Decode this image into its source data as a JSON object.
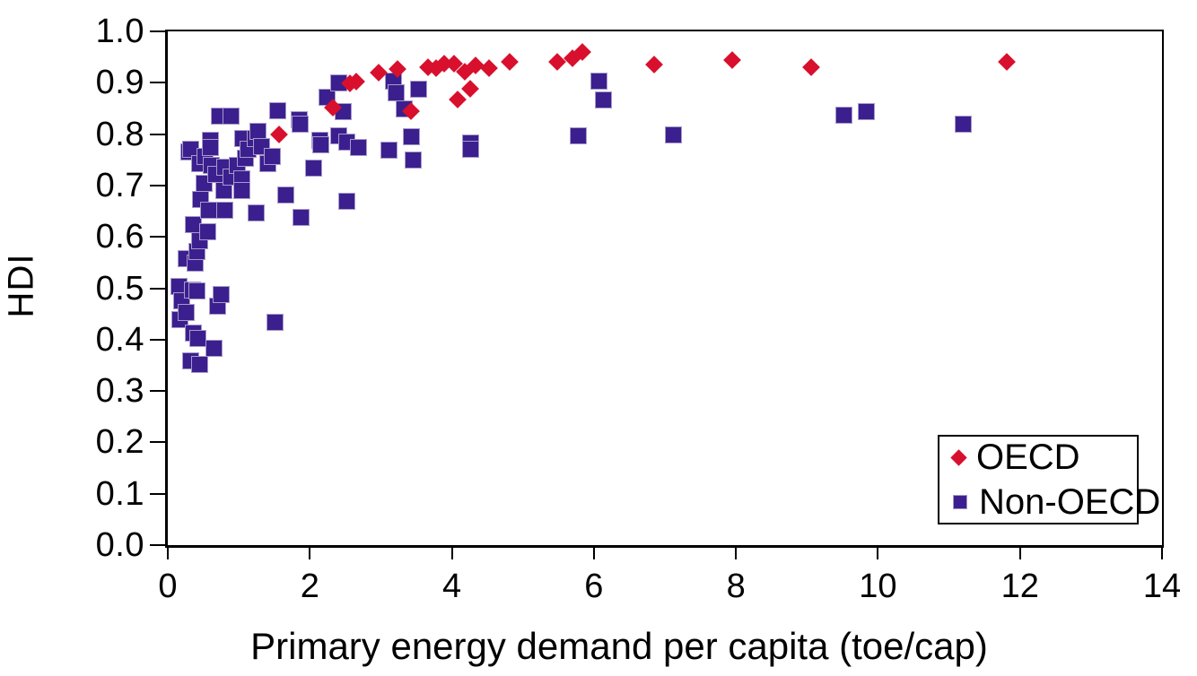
{
  "chart_data": {
    "type": "scatter",
    "title": "",
    "xlabel": "Primary energy demand per capita (toe/cap)",
    "ylabel": "HDI",
    "xlim": [
      0,
      14
    ],
    "ylim": [
      0.0,
      1.0
    ],
    "x_ticks": [
      "0",
      "2",
      "4",
      "6",
      "8",
      "10",
      "12",
      "14"
    ],
    "y_ticks": [
      "0.0",
      "0.1",
      "0.2",
      "0.3",
      "0.4",
      "0.5",
      "0.6",
      "0.7",
      "0.8",
      "0.9",
      "1.0"
    ],
    "grid": false,
    "legend_position": "bottom-right",
    "series": [
      {
        "name": "OECD",
        "marker": "diamond",
        "color": "#d8102d",
        "points": [
          [
            1.57,
            0.799
          ],
          [
            2.32,
            0.851
          ],
          [
            2.57,
            0.898
          ],
          [
            2.65,
            0.903
          ],
          [
            2.97,
            0.92
          ],
          [
            3.24,
            0.927
          ],
          [
            3.43,
            0.844
          ],
          [
            3.66,
            0.931
          ],
          [
            3.78,
            0.928
          ],
          [
            3.89,
            0.937
          ],
          [
            4.03,
            0.937
          ],
          [
            4.08,
            0.868
          ],
          [
            4.18,
            0.922
          ],
          [
            4.26,
            0.889
          ],
          [
            4.33,
            0.933
          ],
          [
            4.52,
            0.928
          ],
          [
            4.82,
            0.94
          ],
          [
            5.49,
            0.94
          ],
          [
            5.7,
            0.947
          ],
          [
            5.84,
            0.96
          ],
          [
            6.85,
            0.936
          ],
          [
            7.95,
            0.945
          ],
          [
            9.06,
            0.93
          ],
          [
            11.82,
            0.941
          ]
        ]
      },
      {
        "name": "Non-OECD",
        "marker": "square",
        "color": "#3b1f8e",
        "points": [
          [
            0.15,
            0.505
          ],
          [
            0.17,
            0.44
          ],
          [
            0.19,
            0.477
          ],
          [
            0.25,
            0.558
          ],
          [
            0.25,
            0.454
          ],
          [
            0.29,
            0.766
          ],
          [
            0.31,
            0.772
          ],
          [
            0.31,
            0.359
          ],
          [
            0.34,
            0.498
          ],
          [
            0.36,
            0.625
          ],
          [
            0.36,
            0.414
          ],
          [
            0.38,
            0.55
          ],
          [
            0.4,
            0.573
          ],
          [
            0.4,
            0.495
          ],
          [
            0.42,
            0.403
          ],
          [
            0.44,
            0.743
          ],
          [
            0.44,
            0.593
          ],
          [
            0.44,
            0.353
          ],
          [
            0.46,
            0.673
          ],
          [
            0.5,
            0.705
          ],
          [
            0.52,
            0.757
          ],
          [
            0.55,
            0.61
          ],
          [
            0.57,
            0.653
          ],
          [
            0.59,
            0.789
          ],
          [
            0.59,
            0.775
          ],
          [
            0.61,
            0.74
          ],
          [
            0.65,
            0.384
          ],
          [
            0.67,
            0.723
          ],
          [
            0.7,
            0.466
          ],
          [
            0.72,
            0.836
          ],
          [
            0.75,
            0.489
          ],
          [
            0.78,
            0.691
          ],
          [
            0.8,
            0.737
          ],
          [
            0.8,
            0.653
          ],
          [
            0.88,
            0.718
          ],
          [
            0.89,
            0.836
          ],
          [
            0.97,
            0.74
          ],
          [
            1.03,
            0.714
          ],
          [
            1.03,
            0.691
          ],
          [
            1.05,
            0.792
          ],
          [
            1.09,
            0.754
          ],
          [
            1.13,
            0.772
          ],
          [
            1.22,
            0.793
          ],
          [
            1.24,
            0.648
          ],
          [
            1.26,
            0.806
          ],
          [
            1.32,
            0.777
          ],
          [
            1.4,
            0.743
          ],
          [
            1.47,
            0.757
          ],
          [
            1.5,
            0.434
          ],
          [
            1.54,
            0.847
          ],
          [
            1.66,
            0.682
          ],
          [
            1.84,
            0.829
          ],
          [
            1.86,
            0.82
          ],
          [
            1.87,
            0.639
          ],
          [
            2.05,
            0.734
          ],
          [
            2.13,
            0.789
          ],
          [
            2.15,
            0.78
          ],
          [
            2.24,
            0.873
          ],
          [
            2.4,
            0.901
          ],
          [
            2.4,
            0.797
          ],
          [
            2.47,
            0.845
          ],
          [
            2.51,
            0.785
          ],
          [
            2.52,
            0.671
          ],
          [
            2.68,
            0.774
          ],
          [
            3.11,
            0.769
          ],
          [
            3.17,
            0.904
          ],
          [
            3.21,
            0.881
          ],
          [
            3.32,
            0.85
          ],
          [
            3.42,
            0.795
          ],
          [
            3.45,
            0.75
          ],
          [
            3.52,
            0.889
          ],
          [
            4.26,
            0.783
          ],
          [
            4.26,
            0.771
          ],
          [
            5.78,
            0.797
          ],
          [
            6.07,
            0.904
          ],
          [
            6.13,
            0.868
          ],
          [
            7.12,
            0.8
          ],
          [
            9.52,
            0.837
          ],
          [
            9.83,
            0.844
          ],
          [
            11.19,
            0.82
          ]
        ]
      }
    ]
  },
  "colors": {
    "oecd": "#d8102d",
    "non_oecd": "#3b1f8e",
    "square_edge": "#a79bc9",
    "axis": "#000000",
    "background": "#ffffff"
  }
}
